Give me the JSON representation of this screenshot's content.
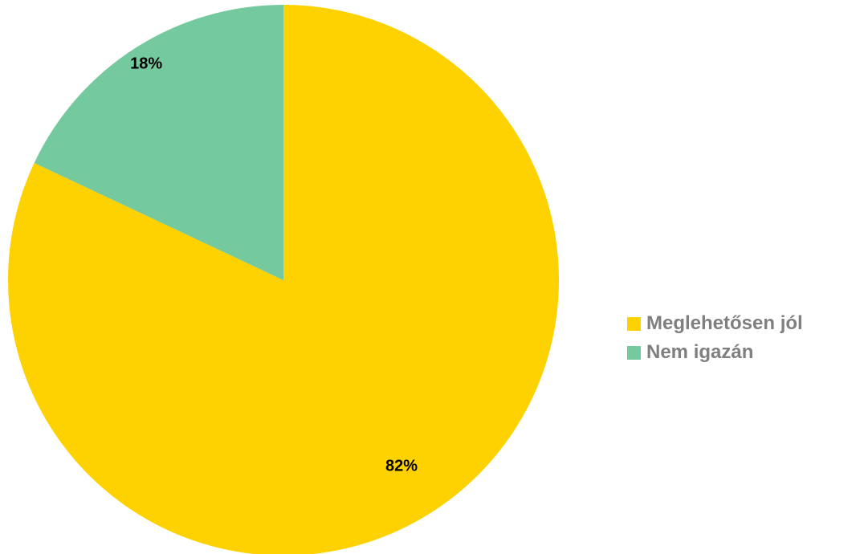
{
  "chart_data": {
    "type": "pie",
    "categories": [
      "Meglehetősen jól",
      "Nem igazán"
    ],
    "values": [
      82,
      18
    ],
    "data_labels": [
      "82%",
      "18%"
    ],
    "colors": [
      "#fdd200",
      "#74c99e"
    ],
    "start_angle_deg": 0,
    "direction": "clockwise",
    "legend": {
      "position": "right",
      "entries": [
        "Meglehetősen jól",
        "Nem igazán"
      ]
    }
  }
}
